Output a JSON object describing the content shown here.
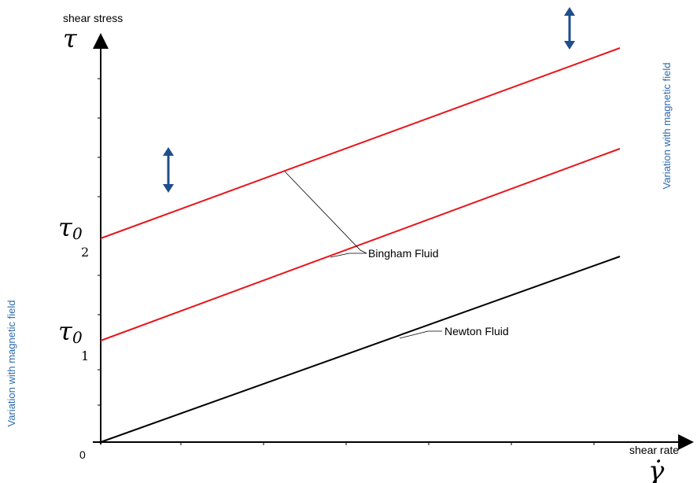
{
  "axes": {
    "y_title": "shear stress",
    "y_symbol": "τ",
    "x_title": "shear rate",
    "x_symbol": "γ̇",
    "origin": "0"
  },
  "y_markers": [
    {
      "symbol": "τ",
      "italic_o": "0",
      "index": "2"
    },
    {
      "symbol": "τ",
      "italic_o": "0",
      "index": "1"
    }
  ],
  "curves": [
    {
      "name": "bingham-upper",
      "color": "#e8151b"
    },
    {
      "name": "bingham-lower",
      "color": "#e8151b"
    },
    {
      "name": "newton",
      "color": "#000000"
    }
  ],
  "labels": {
    "bingham": "Bingham Fluid",
    "newton": "Newton Fluid"
  },
  "side_text": {
    "left": "Variation with magnetic field",
    "right": "Variation with magnetic field"
  },
  "colors": {
    "arrow": "#1f4e8c",
    "side_text": "#2e6bb0"
  }
}
